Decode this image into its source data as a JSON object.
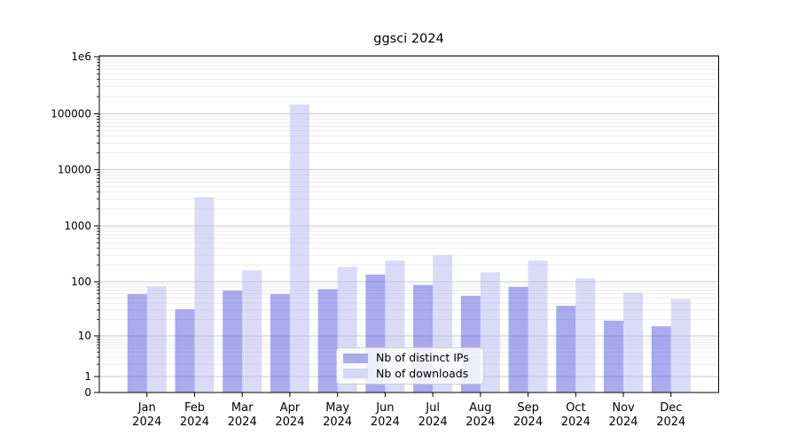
{
  "figure": {
    "title": "ggsci 2024"
  },
  "legend": {
    "items": [
      {
        "label": "Nb of distinct IPs",
        "color": "#aaaaee"
      },
      {
        "label": "Nb of downloads",
        "color": "#d6d6f6"
      }
    ]
  },
  "chart_data": {
    "type": "bar",
    "title": "ggsci 2024",
    "categories": [
      "Jan 2024",
      "Feb 2024",
      "Mar 2024",
      "Apr 2024",
      "May 2024",
      "Jun 2024",
      "Jul 2024",
      "Aug 2024",
      "Sep 2024",
      "Oct 2024",
      "Nov 2024",
      "Dec 2024"
    ],
    "series": [
      {
        "name": "Nb of distinct IPs",
        "bar_color": "rgba(85,85,221,0.5)",
        "legend_color": "#aaaaee",
        "values": [
          59,
          31,
          69,
          59,
          73,
          135,
          87,
          55,
          80,
          36,
          19,
          15
        ]
      },
      {
        "name": "Nb of downloads",
        "bar_color": "rgba(190,190,242,0.55)",
        "legend_color": "#d6d6f6",
        "values": [
          82,
          3250,
          160,
          145000,
          185,
          240,
          300,
          148,
          240,
          115,
          63,
          48
        ]
      }
    ],
    "xlabel": "",
    "ylabel": "",
    "yscale": "symlog (log above 1, linear 0-1)",
    "ylim": [
      0,
      1000000
    ],
    "yticks": [
      0,
      1,
      10,
      100,
      1000,
      10000,
      100000,
      1000000
    ],
    "ytick_labels": [
      "0",
      "1",
      "10",
      "100",
      "1000",
      "10000",
      "100000",
      "1e6"
    ],
    "grid": "horizontal major and minor gridlines",
    "legend_position": "lower center",
    "colors": {
      "major_grid": "#c8c8c8",
      "minor_grid": "#ebebeb",
      "axis": "#000000"
    }
  }
}
